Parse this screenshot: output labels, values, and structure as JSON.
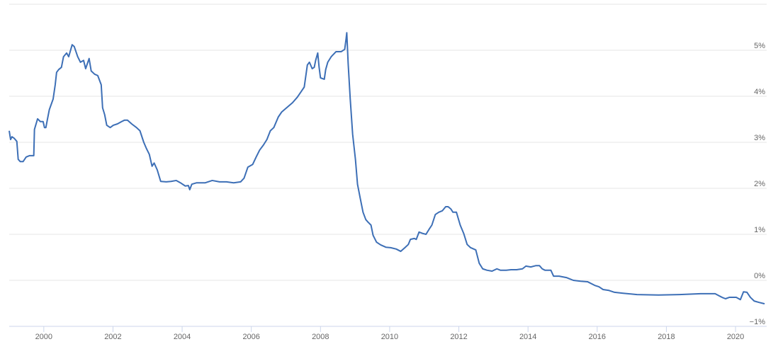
{
  "chart_data": {
    "type": "line",
    "color": "#3d6fb6",
    "x": [
      1999.0,
      1999.04,
      1999.08,
      1999.14,
      1999.22,
      1999.26,
      1999.32,
      1999.4,
      1999.49,
      1999.59,
      1999.71,
      1999.73,
      1999.82,
      1999.9,
      1999.98,
      2000.02,
      2000.06,
      2000.1,
      2000.16,
      2000.27,
      2000.33,
      2000.37,
      2000.43,
      2000.51,
      2000.57,
      2000.66,
      2000.72,
      2000.82,
      2000.88,
      2000.98,
      2001.06,
      2001.15,
      2001.21,
      2001.31,
      2001.37,
      2001.47,
      2001.56,
      2001.66,
      2001.7,
      2001.76,
      2001.82,
      2001.92,
      2002.01,
      2002.13,
      2002.25,
      2002.33,
      2002.42,
      2002.54,
      2002.68,
      2002.78,
      2002.89,
      2002.97,
      2003.05,
      2003.13,
      2003.19,
      2003.28,
      2003.38,
      2003.54,
      2003.68,
      2003.83,
      2003.95,
      2004.09,
      2004.18,
      2004.22,
      2004.28,
      2004.42,
      2004.67,
      2004.87,
      2005.08,
      2005.28,
      2005.49,
      2005.69,
      2005.79,
      2005.9,
      2006.04,
      2006.14,
      2006.24,
      2006.35,
      2006.45,
      2006.55,
      2006.65,
      2006.78,
      2006.88,
      2007.02,
      2007.19,
      2007.33,
      2007.43,
      2007.53,
      2007.62,
      2007.68,
      2007.76,
      2007.82,
      2007.86,
      2007.92,
      2007.96,
      2008.0,
      2008.11,
      2008.15,
      2008.21,
      2008.31,
      2008.45,
      2008.6,
      2008.7,
      2008.74,
      2008.76,
      2008.8,
      2008.86,
      2008.93,
      2009.01,
      2009.07,
      2009.15,
      2009.23,
      2009.31,
      2009.38,
      2009.46,
      2009.52,
      2009.62,
      2009.74,
      2009.89,
      2010.03,
      2010.19,
      2010.32,
      2010.44,
      2010.54,
      2010.6,
      2010.71,
      2010.77,
      2010.85,
      2010.95,
      2011.05,
      2011.14,
      2011.22,
      2011.32,
      2011.42,
      2011.52,
      2011.62,
      2011.69,
      2011.77,
      2011.83,
      2011.93,
      2012.04,
      2012.14,
      2012.24,
      2012.34,
      2012.49,
      2012.59,
      2012.69,
      2012.81,
      2012.96,
      2013.1,
      2013.2,
      2013.37,
      2013.51,
      2013.67,
      2013.84,
      2013.94,
      2014.08,
      2014.23,
      2014.33,
      2014.41,
      2014.49,
      2014.66,
      2014.74,
      2014.9,
      2015.11,
      2015.31,
      2015.52,
      2015.72,
      2015.93,
      2016.05,
      2016.17,
      2016.34,
      2016.5,
      2016.75,
      2017.15,
      2017.77,
      2018.38,
      2018.99,
      2019.41,
      2019.61,
      2019.71,
      2019.82,
      2020.02,
      2020.14,
      2020.23,
      2020.33,
      2020.43,
      2020.54,
      2020.68,
      2020.84
    ],
    "values": [
      3.25,
      3.06,
      3.12,
      3.09,
      3.02,
      2.63,
      2.58,
      2.58,
      2.68,
      2.71,
      2.71,
      3.28,
      3.51,
      3.45,
      3.45,
      3.32,
      3.32,
      3.48,
      3.71,
      3.94,
      4.25,
      4.52,
      4.58,
      4.63,
      4.86,
      4.94,
      4.86,
      5.12,
      5.08,
      4.86,
      4.74,
      4.78,
      4.6,
      4.82,
      4.55,
      4.48,
      4.45,
      4.25,
      3.75,
      3.6,
      3.37,
      3.32,
      3.37,
      3.4,
      3.45,
      3.48,
      3.48,
      3.4,
      3.32,
      3.25,
      3.0,
      2.86,
      2.74,
      2.48,
      2.55,
      2.4,
      2.15,
      2.14,
      2.15,
      2.17,
      2.12,
      2.05,
      2.06,
      1.97,
      2.09,
      2.12,
      2.12,
      2.17,
      2.14,
      2.14,
      2.12,
      2.14,
      2.22,
      2.46,
      2.52,
      2.68,
      2.83,
      2.94,
      3.06,
      3.25,
      3.32,
      3.55,
      3.66,
      3.75,
      3.86,
      3.98,
      4.09,
      4.2,
      4.68,
      4.74,
      4.6,
      4.63,
      4.78,
      4.94,
      4.63,
      4.4,
      4.37,
      4.58,
      4.74,
      4.86,
      4.97,
      4.97,
      5.02,
      5.25,
      5.38,
      4.71,
      3.94,
      3.17,
      2.63,
      2.09,
      1.78,
      1.48,
      1.32,
      1.26,
      1.2,
      0.98,
      0.83,
      0.77,
      0.72,
      0.71,
      0.68,
      0.63,
      0.71,
      0.78,
      0.89,
      0.91,
      0.89,
      1.05,
      1.02,
      1.0,
      1.11,
      1.2,
      1.43,
      1.48,
      1.51,
      1.6,
      1.6,
      1.55,
      1.48,
      1.48,
      1.2,
      1.02,
      0.78,
      0.71,
      0.66,
      0.37,
      0.25,
      0.22,
      0.2,
      0.25,
      0.22,
      0.22,
      0.23,
      0.23,
      0.25,
      0.31,
      0.29,
      0.32,
      0.32,
      0.25,
      0.22,
      0.22,
      0.09,
      0.09,
      0.06,
      0.0,
      -0.02,
      -0.03,
      -0.11,
      -0.14,
      -0.2,
      -0.22,
      -0.26,
      -0.28,
      -0.31,
      -0.32,
      -0.31,
      -0.29,
      -0.29,
      -0.37,
      -0.4,
      -0.37,
      -0.37,
      -0.42,
      -0.25,
      -0.26,
      -0.37,
      -0.45,
      -0.48,
      -0.51
    ],
    "xlim": [
      1999,
      2020.9
    ],
    "xticks": [
      2000,
      2002,
      2004,
      2006,
      2008,
      2010,
      2012,
      2014,
      2016,
      2018,
      2020
    ],
    "ylim": [
      -1,
      6
    ],
    "yticks": [
      {
        "value": -1,
        "label": "−1%"
      },
      {
        "value": 0,
        "label": "0%"
      },
      {
        "value": 1,
        "label": "1%"
      },
      {
        "value": 2,
        "label": "2%"
      },
      {
        "value": 3,
        "label": "3%"
      },
      {
        "value": 4,
        "label": "4%"
      },
      {
        "value": 5,
        "label": "5%"
      }
    ],
    "grid": true
  }
}
